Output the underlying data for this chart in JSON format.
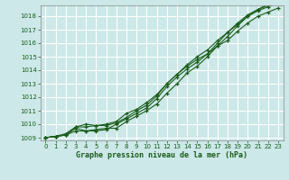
{
  "title": "Graphe pression niveau de la mer (hPa)",
  "bg_color": "#cce8e8",
  "grid_color": "#ffffff",
  "line_color": "#1a5c1a",
  "text_color": "#1a5c1a",
  "xlim": [
    -0.5,
    23.5
  ],
  "ylim": [
    1008.8,
    1018.8
  ],
  "xticks": [
    0,
    1,
    2,
    3,
    4,
    5,
    6,
    7,
    8,
    9,
    10,
    11,
    12,
    13,
    14,
    15,
    16,
    17,
    18,
    19,
    20,
    21,
    22,
    23
  ],
  "yticks": [
    1009,
    1010,
    1011,
    1012,
    1013,
    1014,
    1015,
    1016,
    1017,
    1018
  ],
  "series": [
    [
      1009.0,
      1009.1,
      1009.2,
      1009.7,
      1009.5,
      1009.6,
      1009.7,
      1009.7,
      1010.2,
      1010.6,
      1011.0,
      1011.5,
      1012.3,
      1013.0,
      1013.8,
      1014.3,
      1015.0,
      1015.8,
      1016.5,
      1017.3,
      1018.0,
      1018.5,
      1018.9,
      1019.3
    ],
    [
      1009.0,
      1009.1,
      1009.2,
      1009.5,
      1009.5,
      1009.5,
      1009.6,
      1010.0,
      1010.4,
      1010.8,
      1011.2,
      1011.9,
      1012.8,
      1013.5,
      1014.1,
      1014.6,
      1015.2,
      1016.0,
      1016.8,
      1017.4,
      1018.0,
      1018.4,
      1018.7,
      1019.0
    ],
    [
      1009.0,
      1009.1,
      1009.2,
      1009.8,
      1010.0,
      1009.9,
      1009.9,
      1010.1,
      1010.5,
      1011.0,
      1011.4,
      1012.1,
      1013.0,
      1013.7,
      1014.3,
      1014.8,
      1015.2,
      1015.8,
      1016.2,
      1016.9,
      1017.5,
      1018.0,
      1018.3,
      1018.6
    ],
    [
      1009.0,
      1009.1,
      1009.3,
      1009.8,
      1009.8,
      1009.9,
      1010.0,
      1010.2,
      1010.8,
      1011.1,
      1011.6,
      1012.2,
      1013.0,
      1013.7,
      1014.4,
      1015.0,
      1015.5,
      1016.2,
      1016.8,
      1017.5,
      1018.1,
      1018.5,
      1018.8,
      1019.1
    ]
  ]
}
